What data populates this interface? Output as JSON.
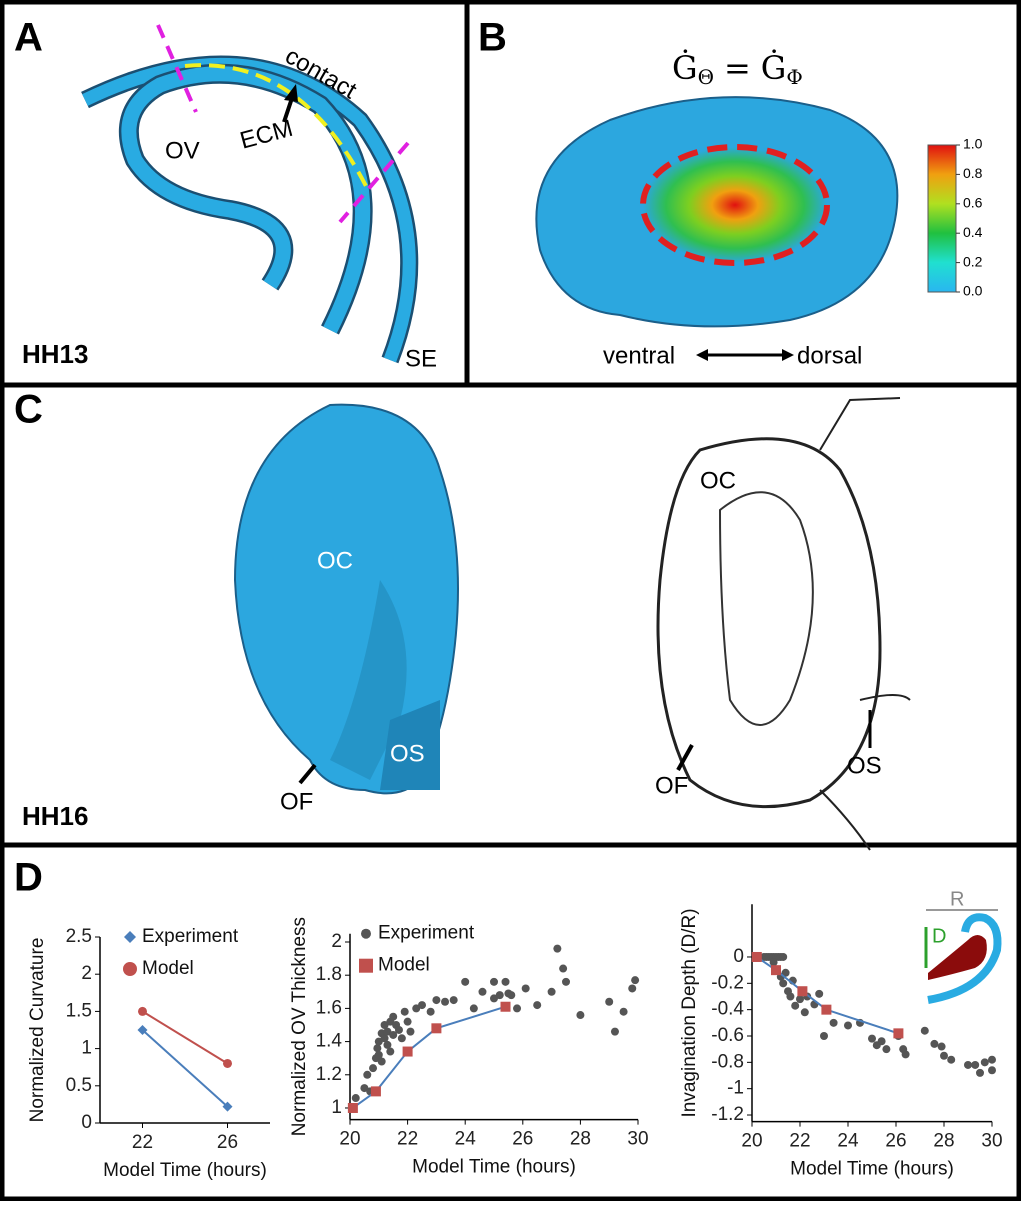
{
  "panels": {
    "a": {
      "label": "A",
      "contact": "contact",
      "ecm": "ECM",
      "ov": "OV",
      "se": "SE",
      "stage": "HH13"
    },
    "b": {
      "label": "B",
      "equation": {
        "lhs": "Ġ",
        "lhs_sub": "Θ",
        "eq": "=",
        "rhs": "Ġ",
        "rhs_sub": "Φ"
      },
      "ventral": "ventral",
      "dorsal": "dorsal",
      "colorbar": {
        "lim": [
          0,
          1
        ],
        "ticks": [
          {
            "value": 0,
            "label": "0.0"
          },
          {
            "value": 0.2,
            "label": "0.2"
          },
          {
            "value": 0.4,
            "label": "0.4"
          },
          {
            "value": 0.6,
            "label": "0.6"
          },
          {
            "value": 0.8,
            "label": "0.8"
          },
          {
            "value": 1,
            "label": "1.0"
          }
        ]
      }
    },
    "c": {
      "label": "C",
      "model_oc": "OC",
      "model_os": "OS",
      "model_of": "OF",
      "stage": "HH16",
      "drawing_oc": "OC",
      "drawing_of": "OF",
      "drawing_os": "OS"
    },
    "d": {
      "label": "D"
    }
  },
  "chart_data": [
    {
      "type": "line",
      "xlabel": "Model Time (hours)",
      "ylabel": "Normalized Curvature",
      "xlim": [
        20,
        28
      ],
      "xticks": [
        22,
        26
      ],
      "ylim": [
        0,
        2.5
      ],
      "yticks": [
        0,
        0.5,
        1,
        1.5,
        2,
        2.5
      ],
      "series": [
        {
          "name": "Experiment",
          "color": "#4a7ebb",
          "marker": "diamond",
          "line": true,
          "x": [
            22,
            26
          ],
          "values": [
            1.25,
            0.22
          ]
        },
        {
          "name": "Model",
          "color": "#c0504d",
          "marker": "circle",
          "line": true,
          "x": [
            22,
            26
          ],
          "values": [
            1.5,
            0.8
          ]
        }
      ]
    },
    {
      "type": "scatter",
      "xlabel": "Model Time (hours)",
      "ylabel": "Normalized OV Thickness",
      "xlim": [
        20,
        30
      ],
      "xticks": [
        20,
        22,
        24,
        26,
        28,
        30
      ],
      "ylim": [
        0.93,
        2.05
      ],
      "yticks": [
        1,
        1.2,
        1.4,
        1.6,
        1.8,
        2
      ],
      "series": [
        {
          "name": "Experiment",
          "color": "#555555",
          "marker": "dot",
          "line": false,
          "x": [
            20.2,
            20.5,
            20.6,
            20.7,
            20.8,
            20.9,
            20.95,
            21.0,
            21.0,
            21.1,
            21.1,
            21.2,
            21.2,
            21.3,
            21.3,
            21.4,
            21.4,
            21.5,
            21.5,
            21.6,
            21.7,
            21.8,
            21.9,
            22.0,
            22.1,
            22.3,
            22.5,
            22.8,
            23.0,
            23.3,
            23.6,
            24.0,
            24.3,
            24.6,
            25.0,
            25.0,
            25.2,
            25.4,
            25.5,
            25.6,
            25.8,
            26.1,
            26.5,
            27.0,
            27.2,
            27.4,
            27.5,
            28.0,
            29.0,
            29.2,
            29.5,
            29.8,
            29.9
          ],
          "values": [
            1.06,
            1.12,
            1.2,
            1.1,
            1.24,
            1.3,
            1.36,
            1.4,
            1.32,
            1.45,
            1.28,
            1.42,
            1.5,
            1.38,
            1.46,
            1.52,
            1.34,
            1.44,
            1.55,
            1.5,
            1.47,
            1.42,
            1.58,
            1.52,
            1.46,
            1.6,
            1.62,
            1.58,
            1.65,
            1.64,
            1.65,
            1.76,
            1.6,
            1.7,
            1.66,
            1.76,
            1.68,
            1.76,
            1.69,
            1.68,
            1.6,
            1.72,
            1.62,
            1.7,
            1.96,
            1.84,
            1.76,
            1.56,
            1.64,
            1.46,
            1.58,
            1.72,
            1.77
          ]
        },
        {
          "name": "Model",
          "color": "#c0504d",
          "line_color": "#4a7ebb",
          "marker": "square",
          "line": true,
          "x": [
            20.1,
            20.9,
            22.0,
            23.0,
            25.4
          ],
          "values": [
            1.0,
            1.1,
            1.34,
            1.48,
            1.61
          ]
        }
      ]
    },
    {
      "type": "scatter",
      "xlabel": "Model Time (hours)",
      "ylabel": "Invagination Depth (D/R)",
      "annotations": [
        "R",
        "D"
      ],
      "xlim": [
        20,
        30
      ],
      "xticks": [
        20,
        22,
        24,
        26,
        28,
        30
      ],
      "ylim": [
        -1.25,
        0.4
      ],
      "yticks": [
        0,
        -0.2,
        -0.4,
        -0.6,
        -0.8,
        -1,
        -1.2
      ],
      "series": [
        {
          "color": "#555555",
          "marker": "dot",
          "line": false,
          "x": [
            20.3,
            20.5,
            20.6,
            20.7,
            20.8,
            20.9,
            21.0,
            21.1,
            21.2,
            21.3,
            20.9,
            21.2,
            21.3,
            21.4,
            21.5,
            21.6,
            21.7,
            21.8,
            22.0,
            22.2,
            22.3,
            22.6,
            22.8,
            23.0,
            23.4,
            24.0,
            24.5,
            25.0,
            25.2,
            25.4,
            25.6,
            26.1,
            26.3,
            26.4,
            27.2,
            27.6,
            27.9,
            28.0,
            28.3,
            29.0,
            29.3,
            29.5,
            29.7,
            30.0,
            30.0
          ],
          "values": [
            0,
            0,
            0,
            0,
            0,
            0,
            0,
            0,
            0,
            0,
            -0.04,
            -0.15,
            -0.2,
            -0.12,
            -0.26,
            -0.3,
            -0.18,
            -0.37,
            -0.32,
            -0.42,
            -0.3,
            -0.36,
            -0.28,
            -0.6,
            -0.5,
            -0.52,
            -0.5,
            -0.62,
            -0.67,
            -0.64,
            -0.7,
            -0.6,
            -0.7,
            -0.74,
            -0.56,
            -0.66,
            -0.68,
            -0.75,
            -0.78,
            -0.82,
            -0.82,
            -0.88,
            -0.8,
            -0.78,
            -0.86
          ]
        },
        {
          "color": "#c0504d",
          "line_color": "#4a7ebb",
          "marker": "square",
          "line": true,
          "x": [
            20.2,
            21.0,
            22.1,
            23.1,
            26.1
          ],
          "values": [
            0,
            -0.1,
            -0.26,
            -0.4,
            -0.58
          ]
        }
      ]
    }
  ]
}
